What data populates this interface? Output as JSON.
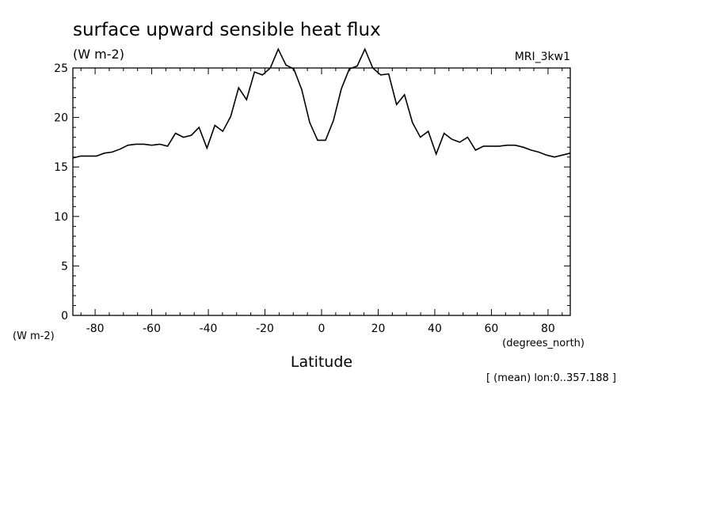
{
  "chart_data": {
    "type": "line",
    "title": "surface upward sensible heat flux",
    "units_label": "(W m-2)",
    "model_label": "MRI_3kw1",
    "ylabel": "(W m-2)",
    "xlabel": "Latitude",
    "xunits": "(degrees_north)",
    "footnote": "[ (mean) lon:0..357.188 ]",
    "xlim": [
      -87.86,
      87.86
    ],
    "ylim": [
      0,
      25
    ],
    "xticks": [
      -80,
      -60,
      -40,
      -20,
      0,
      20,
      40,
      60,
      80
    ],
    "yticks": [
      0,
      5,
      10,
      15,
      20,
      25
    ],
    "xtick_labels": [
      "-80",
      "-60",
      "-40",
      "-20",
      "0",
      "20",
      "40",
      "60",
      "80"
    ],
    "ytick_labels": [
      "0",
      "5",
      "10",
      "15",
      "20",
      "25"
    ],
    "grid": false,
    "series": [
      {
        "x": [
          -87.86,
          -85.1,
          -82.3,
          -79.5,
          -76.7,
          -74.0,
          -71.2,
          -68.4,
          -65.6,
          -62.8,
          -60.0,
          -57.2,
          -54.4,
          -51.6,
          -48.8,
          -46.0,
          -43.3,
          -40.5,
          -37.7,
          -34.9,
          -32.1,
          -29.3,
          -26.5,
          -23.7,
          -20.9,
          -18.1,
          -15.3,
          -12.6,
          -9.8,
          -7.0,
          -4.2,
          -1.4,
          1.4,
          4.2,
          7.0,
          9.8,
          12.6,
          15.3,
          18.1,
          20.9,
          23.7,
          26.5,
          29.3,
          32.1,
          34.9,
          37.7,
          40.5,
          43.3,
          46.0,
          48.8,
          51.6,
          54.4,
          57.2,
          60.0,
          62.8,
          65.6,
          68.4,
          71.2,
          74.0,
          76.7,
          79.5,
          82.3,
          85.1,
          87.86
        ],
        "y": [
          15.9,
          16.1,
          16.1,
          16.1,
          16.4,
          16.5,
          16.8,
          17.2,
          17.3,
          17.3,
          17.2,
          17.3,
          17.1,
          18.4,
          18.0,
          18.2,
          19.0,
          16.9,
          19.2,
          18.6,
          20.1,
          23.0,
          21.8,
          24.6,
          24.3,
          25.0,
          26.9,
          25.3,
          24.9,
          22.8,
          19.5,
          17.7,
          17.7,
          19.7,
          22.9,
          24.9,
          25.2,
          26.9,
          25.0,
          24.3,
          24.4,
          21.3,
          22.3,
          19.5,
          18.0,
          18.6,
          16.3,
          18.4,
          17.8,
          17.5,
          18.0,
          16.7,
          17.1,
          17.1,
          17.1,
          17.2,
          17.2,
          17.0,
          16.7,
          16.5,
          16.2,
          16.0,
          16.2,
          16.4
        ]
      }
    ]
  }
}
